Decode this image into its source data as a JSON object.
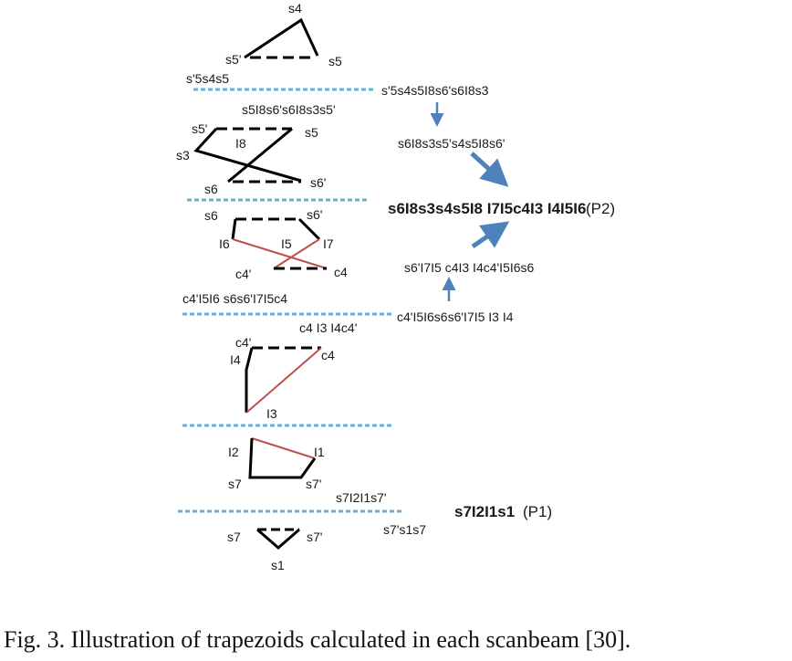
{
  "colors": {
    "scanline": "#62b2d8",
    "solid_edge": "#000000",
    "red_edge": "#c0504d",
    "arrow": "#4f81bd",
    "text": "#1a1a1a"
  },
  "trapezoid_labels": {
    "t1": [
      "s4",
      "s5'",
      "s5"
    ],
    "t2": [
      "s5'",
      "s5",
      "s3",
      "I8",
      "s6",
      "s6'"
    ],
    "t3": [
      "s6",
      "s6'",
      "I6",
      "I5",
      "I7",
      "c4'",
      "c4"
    ],
    "t4": [
      "c4'",
      "c4",
      "I4",
      "I3"
    ],
    "t5": [
      "I2",
      "I1",
      "s7",
      "s7'"
    ],
    "t6": [
      "s7",
      "s7'",
      "s1"
    ]
  },
  "scanline_labels": {
    "a_left": "s'5s4s5",
    "a_right": "s'5s4s5I8s6's6I8s3",
    "a_below": "s5I8s6's6I8s3s5'",
    "b_middle": "s6I8s3s5's4s5I8s6'",
    "c_left": "c4'I5I6 s6s6'I7I5c4",
    "c_right": "c4'I5I6s6s6'I7I5 I3 I4",
    "c_middle": "s6'I7I5 c4I3 I4c4'I5I6s6",
    "c_below": "c4 I3 I4c4'",
    "e_label": "s7I2I1s7'",
    "e_below": "s7's1s7"
  },
  "results": {
    "p2": "s6I8s3s4s5I8 I7I5c4I3 I4I5I6",
    "p2_tag": "(P2)",
    "p1": "s7I2I1s1",
    "p1_tag": "(P1)"
  },
  "caption": "Fig. 3.  Illustration of trapezoids calculated in each scanbeam [30]."
}
